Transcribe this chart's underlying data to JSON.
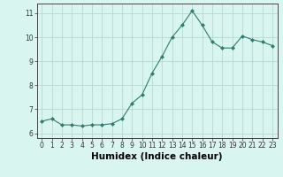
{
  "x": [
    0,
    1,
    2,
    3,
    4,
    5,
    6,
    7,
    8,
    9,
    10,
    11,
    12,
    13,
    14,
    15,
    16,
    17,
    18,
    19,
    20,
    21,
    22,
    23
  ],
  "y": [
    6.5,
    6.6,
    6.35,
    6.35,
    6.3,
    6.35,
    6.35,
    6.4,
    6.6,
    7.25,
    7.6,
    8.5,
    9.2,
    10.0,
    10.5,
    11.1,
    10.5,
    9.8,
    9.55,
    9.55,
    10.05,
    9.9,
    9.8,
    9.65
  ],
  "line_color": "#2e7d6e",
  "marker": "D",
  "marker_size": 2.0,
  "bg_color": "#d8f5f0",
  "grid_color": "#b8d8d0",
  "xlabel": "Humidex (Indice chaleur)",
  "ylabel": "",
  "xlim": [
    -0.5,
    23.5
  ],
  "ylim": [
    5.8,
    11.4
  ],
  "yticks": [
    6,
    7,
    8,
    9,
    10,
    11
  ],
  "xticks": [
    0,
    1,
    2,
    3,
    4,
    5,
    6,
    7,
    8,
    9,
    10,
    11,
    12,
    13,
    14,
    15,
    16,
    17,
    18,
    19,
    20,
    21,
    22,
    23
  ],
  "tick_fontsize": 5.5,
  "xlabel_fontsize": 7.5,
  "line_width": 0.8
}
